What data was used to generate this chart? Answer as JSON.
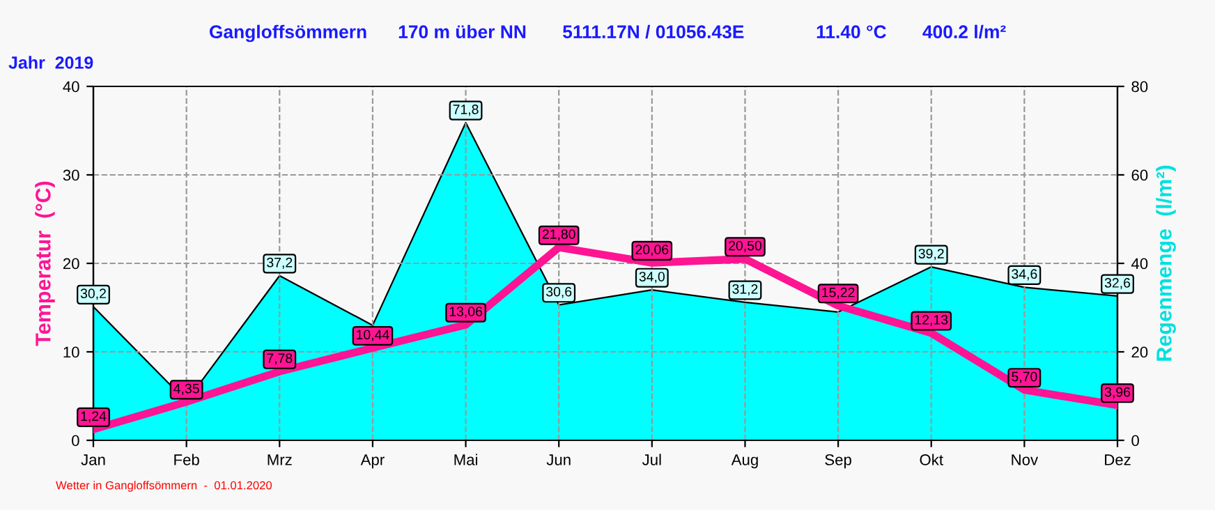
{
  "chart_data": {
    "type": "line",
    "title": "Gangloffsömmern      170 m über NN       5111.17N / 01056.43E              11.40 °C       400.2 l/m²",
    "subtitle": "Jahr  2019",
    "ylabel": "Temperatur  (°C)",
    "y2label": "Regenmenge  (l/m²)",
    "categories": [
      "Jan",
      "Feb",
      "Mrz",
      "Apr",
      "Mai",
      "Jun",
      "Jul",
      "Aug",
      "Sep",
      "Okt",
      "Nov",
      "Dez"
    ],
    "series": [
      {
        "type": "area",
        "axis": "y2",
        "color": "#00ffff",
        "values": [
          30.2,
          8.8,
          37.2,
          26,
          71.8,
          30.6,
          34.0,
          31.2,
          29,
          39.2,
          34.6,
          32.6
        ],
        "value_labels": [
          "30,2",
          null,
          "37,2",
          null,
          "71,8",
          "30,6",
          "34,0",
          "31,2",
          null,
          "39,2",
          "34,6",
          "32,6"
        ]
      },
      {
        "color": "#ff1493",
        "values": [
          1.24,
          4.35,
          7.78,
          10.44,
          13.06,
          21.8,
          20.06,
          20.5,
          15.22,
          12.13,
          5.7,
          3.96
        ],
        "value_labels": [
          "1,24",
          "4,35",
          "7,78",
          "10,44",
          "13,06",
          "21,80",
          "20,06",
          "20,50",
          "15,22",
          "12,13",
          "5,70",
          "3,96"
        ]
      }
    ],
    "ylim": [
      0,
      40
    ],
    "yticks": [
      0,
      10,
      20,
      30,
      40
    ],
    "y2lim": [
      0,
      80
    ],
    "y2ticks": [
      0,
      20,
      40,
      60,
      80
    ],
    "grid": true,
    "annotations": [
      "Wetter in Gangloffsömmern  -  01.01.2020"
    ]
  }
}
